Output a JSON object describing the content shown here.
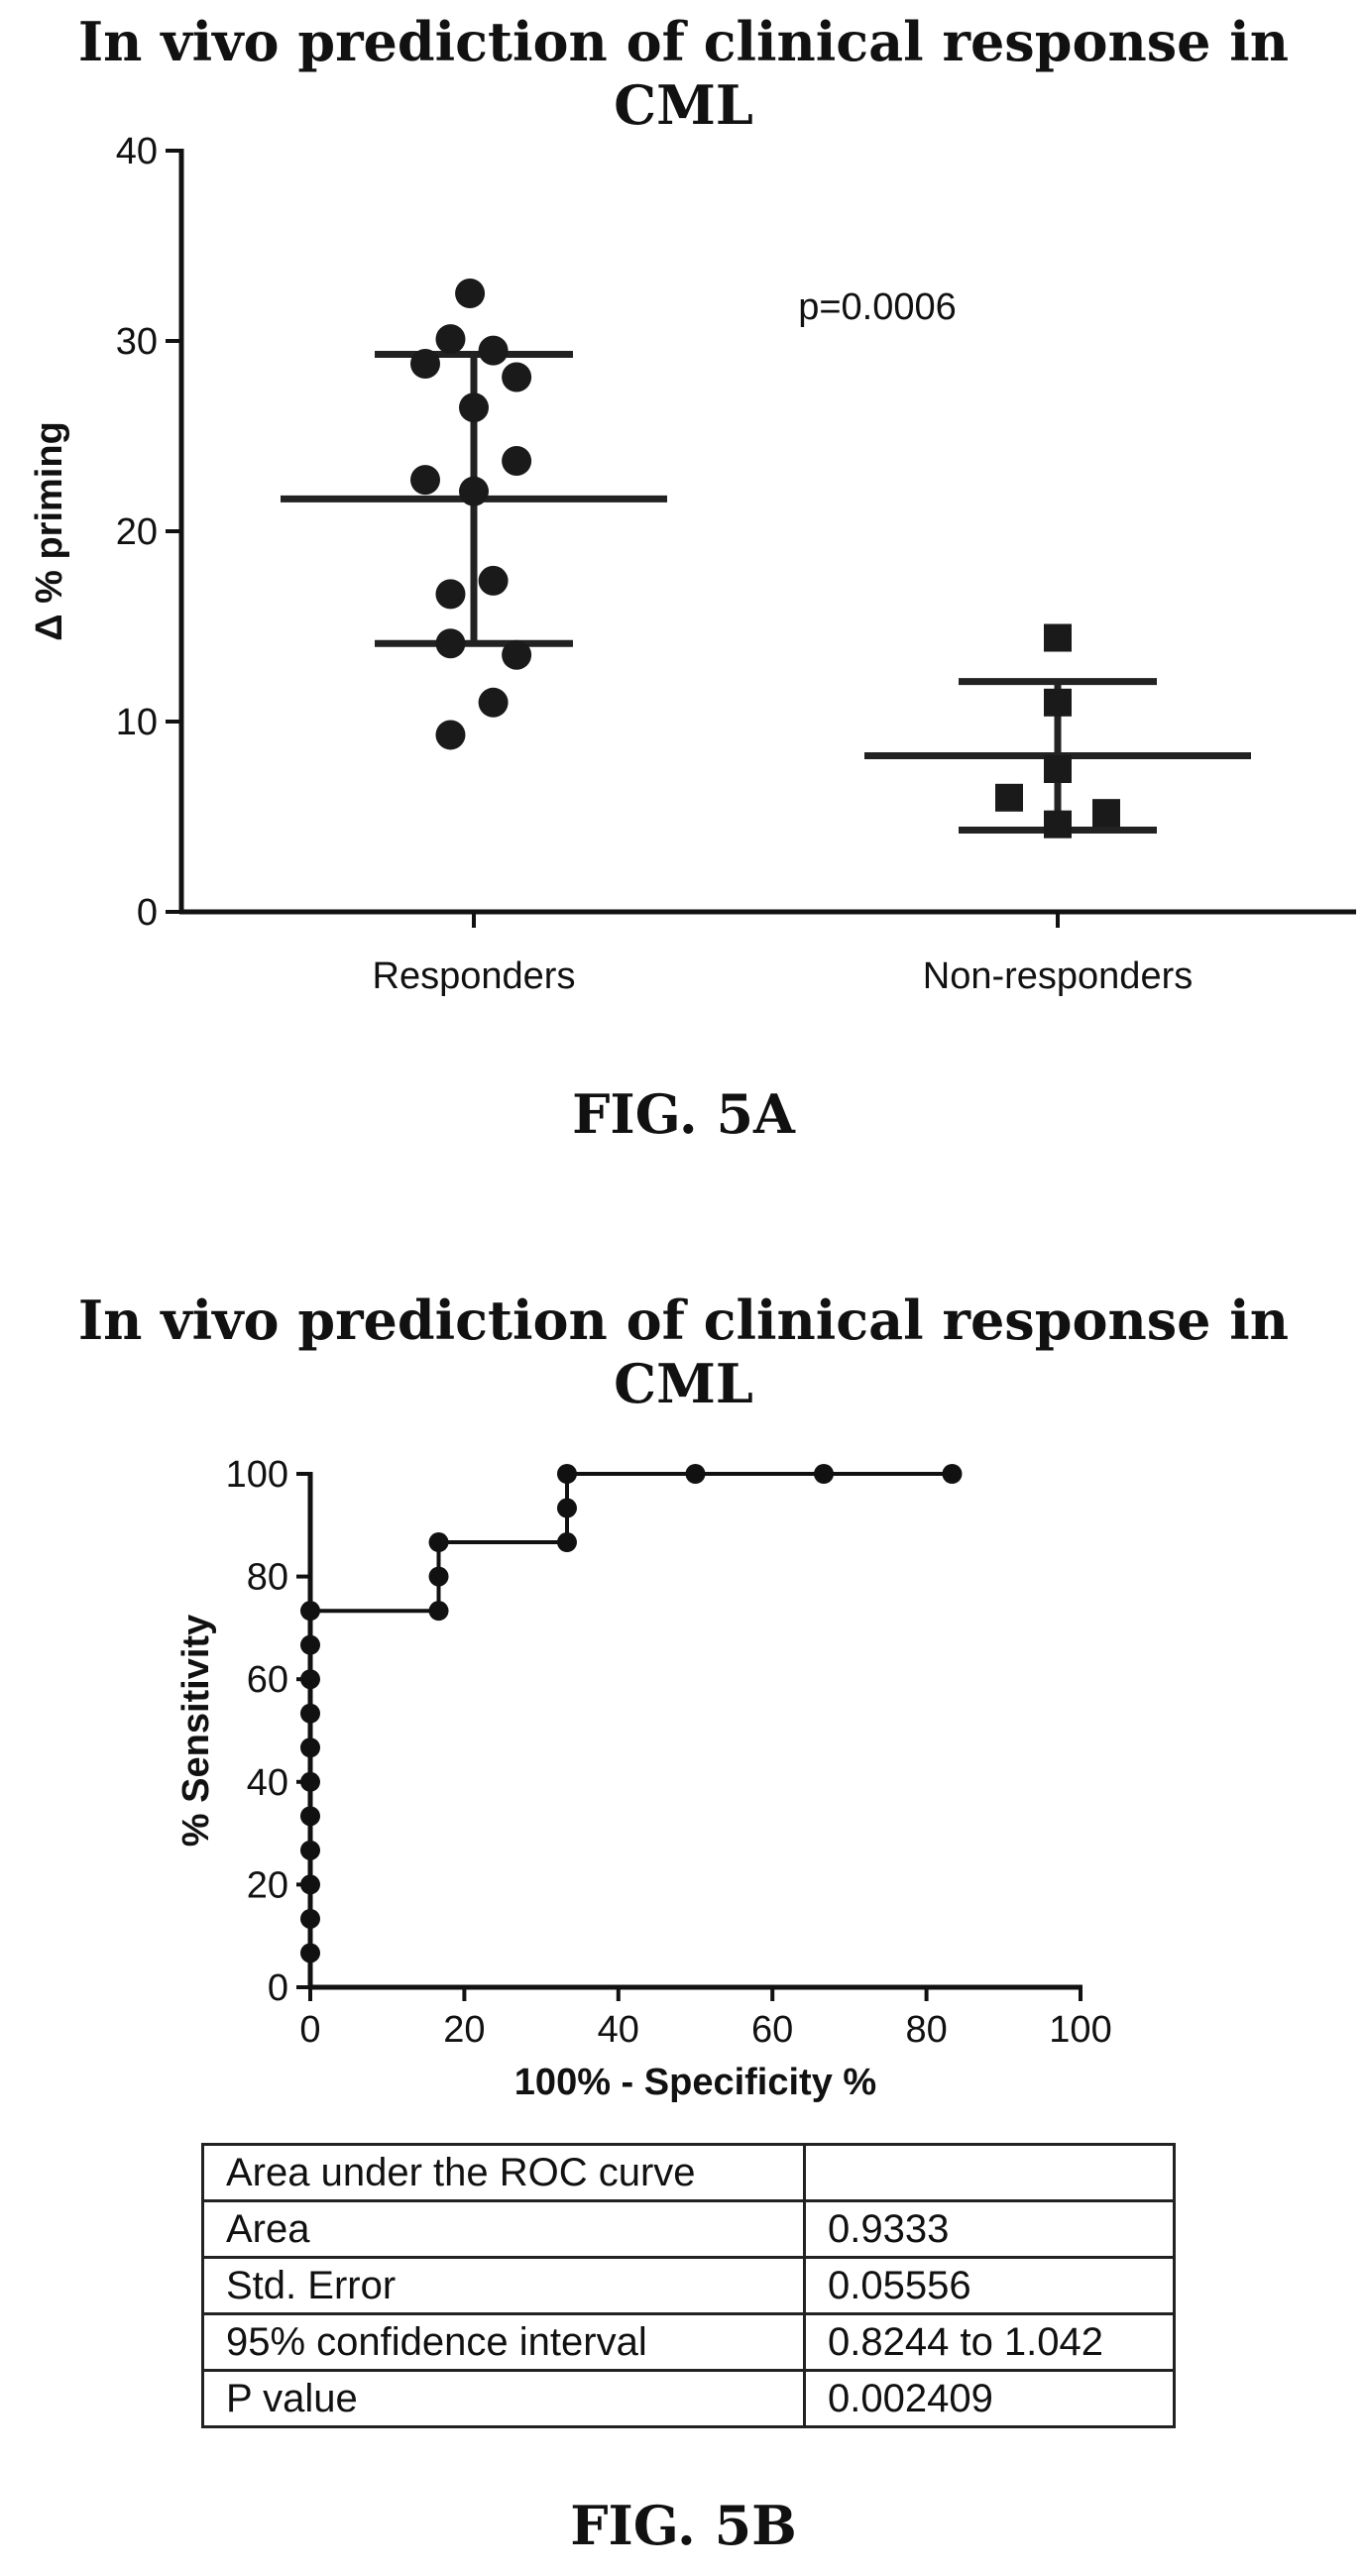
{
  "figure_a": {
    "title": "In vivo prediction of clinical response in CML",
    "caption": "FIG. 5A"
  },
  "figure_b": {
    "title": "In vivo prediction of clinical response in CML",
    "caption": "FIG. 5B",
    "table": {
      "rows": [
        [
          "Area under the ROC curve",
          ""
        ],
        [
          "Area",
          "0.9333"
        ],
        [
          "Std. Error",
          "0.05556"
        ],
        [
          "95% confidence interval",
          "0.8244 to 1.042"
        ],
        [
          "P value",
          "0.002409"
        ]
      ]
    }
  },
  "chart_data": [
    {
      "type": "scatter",
      "title": "In vivo prediction of clinical response in CML",
      "ylabel": "Δ % priming",
      "xlabel": "",
      "categories": [
        "Responders",
        "Non-responders"
      ],
      "ylim": [
        0,
        40
      ],
      "yticks": [
        0,
        10,
        20,
        30,
        40
      ],
      "annotation": "p=0.0006",
      "series": [
        {
          "category": "Responders",
          "marker": "circle",
          "points": [
            {
              "x": -0.02,
              "y": 32.5
            },
            {
              "x": -0.25,
              "y": 28.8
            },
            {
              "x": -0.12,
              "y": 30.1
            },
            {
              "x": 0.1,
              "y": 29.5
            },
            {
              "x": 0.22,
              "y": 28.1
            },
            {
              "x": 0.0,
              "y": 26.5
            },
            {
              "x": 0.22,
              "y": 23.7
            },
            {
              "x": -0.25,
              "y": 22.7
            },
            {
              "x": 0.0,
              "y": 22.1
            },
            {
              "x": -0.12,
              "y": 16.7
            },
            {
              "x": 0.1,
              "y": 17.4
            },
            {
              "x": -0.12,
              "y": 14.1
            },
            {
              "x": 0.22,
              "y": 13.5
            },
            {
              "x": 0.1,
              "y": 11.0
            },
            {
              "x": -0.12,
              "y": 9.3
            }
          ],
          "mean": 21.7,
          "sd_upper": 29.3,
          "sd_lower": 14.1
        },
        {
          "category": "Non-responders",
          "marker": "square",
          "points": [
            {
              "x": 0.0,
              "y": 14.4
            },
            {
              "x": 0.0,
              "y": 11.0
            },
            {
              "x": 0.0,
              "y": 7.5
            },
            {
              "x": -0.25,
              "y": 6.0
            },
            {
              "x": 0.25,
              "y": 5.2
            },
            {
              "x": 0.0,
              "y": 4.6
            }
          ],
          "mean": 8.2,
          "sd_upper": 12.1,
          "sd_lower": 4.3
        }
      ],
      "grid": false
    },
    {
      "type": "line",
      "title": "In vivo prediction of clinical response in CML",
      "xlabel": "100% - Specificity %",
      "ylabel": "% Sensitivity",
      "xlim": [
        0,
        100
      ],
      "ylim": [
        0,
        100
      ],
      "xticks": [
        0,
        20,
        40,
        60,
        80,
        100
      ],
      "yticks": [
        0,
        20,
        40,
        60,
        80,
        100
      ],
      "series": [
        {
          "points": [
            {
              "x": 0,
              "y": 0
            },
            {
              "x": 0,
              "y": 6.67
            },
            {
              "x": 0,
              "y": 13.33
            },
            {
              "x": 0,
              "y": 20
            },
            {
              "x": 0,
              "y": 26.67
            },
            {
              "x": 0,
              "y": 33.33
            },
            {
              "x": 0,
              "y": 40
            },
            {
              "x": 0,
              "y": 46.67
            },
            {
              "x": 0,
              "y": 53.33
            },
            {
              "x": 0,
              "y": 60
            },
            {
              "x": 0,
              "y": 66.67
            },
            {
              "x": 0,
              "y": 73.33
            },
            {
              "x": 16.67,
              "y": 73.33
            },
            {
              "x": 16.67,
              "y": 80
            },
            {
              "x": 16.67,
              "y": 86.67
            },
            {
              "x": 33.33,
              "y": 86.67
            },
            {
              "x": 33.33,
              "y": 93.33
            },
            {
              "x": 33.33,
              "y": 100
            },
            {
              "x": 50,
              "y": 100
            },
            {
              "x": 66.67,
              "y": 100
            },
            {
              "x": 83.33,
              "y": 100
            }
          ]
        }
      ],
      "grid": false
    }
  ]
}
